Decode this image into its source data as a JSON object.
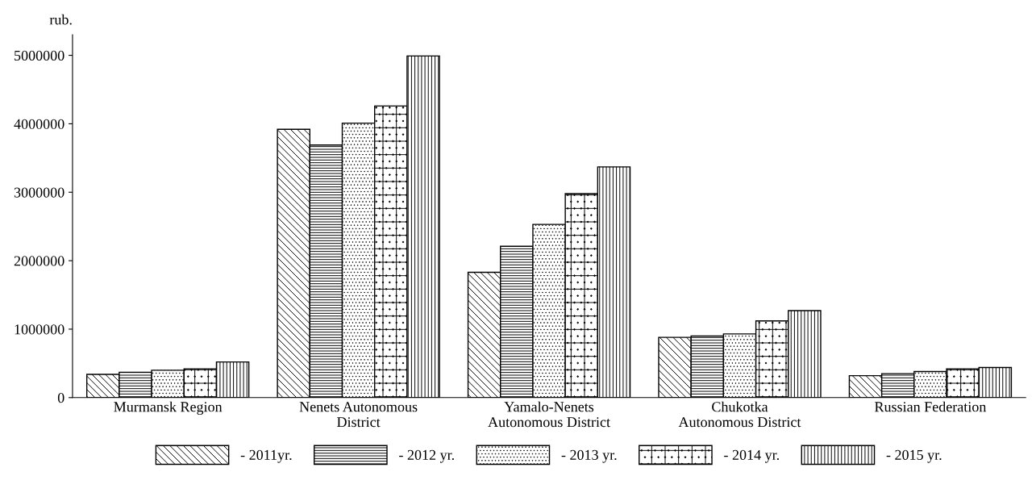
{
  "chart_data": {
    "type": "bar",
    "ylabel": "rub.",
    "categories": [
      "Murmansk Region",
      "Nenets Autonomous\nDistrict",
      "Yamalo-Nenets\nAutonomous District",
      "Chukotka\nAutonomous District",
      "Russian Federation"
    ],
    "series": [
      {
        "name": "- 2011yr.",
        "color": "#000000",
        "values": [
          340000,
          3920000,
          1830000,
          880000,
          320000
        ]
      },
      {
        "name": "- 2012 yr.",
        "color": "#000000",
        "values": [
          370000,
          3690000,
          2210000,
          900000,
          350000
        ]
      },
      {
        "name": "- 2013 yr.",
        "color": "#000000",
        "values": [
          400000,
          4010000,
          2530000,
          930000,
          380000
        ]
      },
      {
        "name": "- 2014 yr.",
        "color": "#000000",
        "values": [
          420000,
          4260000,
          2980000,
          1120000,
          420000
        ]
      },
      {
        "name": "- 2015 yr.",
        "color": "#000000",
        "values": [
          520000,
          4990000,
          3370000,
          1270000,
          440000
        ]
      }
    ],
    "ylim": [
      0,
      5300000
    ],
    "yticks": [
      0,
      1000000,
      2000000,
      3000000,
      4000000,
      5000000
    ],
    "grid": false,
    "legend": "bottom"
  }
}
